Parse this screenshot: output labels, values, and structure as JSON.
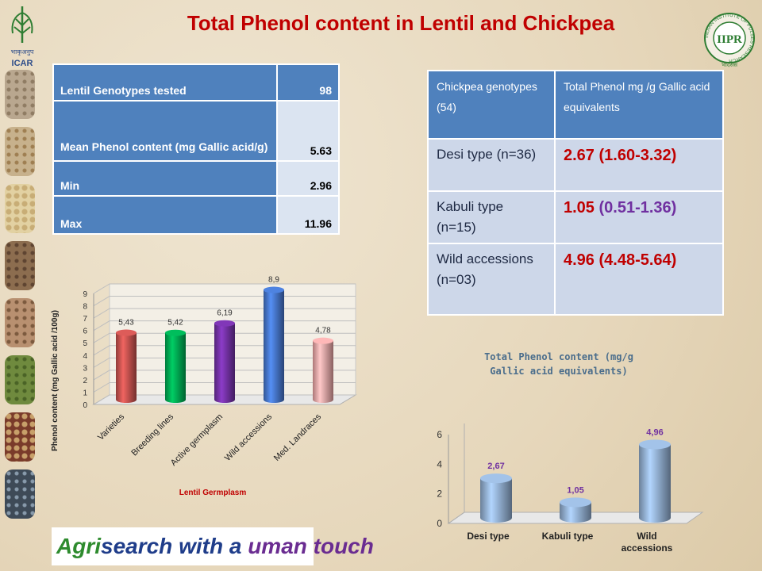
{
  "title": "Total Phenol content in Lentil and Chickpea",
  "logos": {
    "left_text": "ICAR",
    "left_hindi": "भाकृअनुप",
    "right_text": "IIPR",
    "right_ring": "INDIAN INSTITUTE OF PULSES RESEARCH",
    "right_hindi": "भादसंस"
  },
  "lentil_table": {
    "rows": [
      {
        "label": "Lentil Genotypes  tested",
        "value": "98"
      },
      {
        "label": "Mean Phenol content (mg Gallic acid/g)",
        "value": "5.63"
      },
      {
        "label": "Min",
        "value": "2.96"
      },
      {
        "label": "Max",
        "value": "11.96"
      }
    ]
  },
  "chickpea_table": {
    "header_left": "Chickpea genotypes (54)",
    "header_right": "Total Phenol mg /g Gallic acid equivalents",
    "rows": [
      {
        "label": "Desi type (n=36)",
        "mean": "2.67",
        "range": "(1.60-3.32)"
      },
      {
        "label": "Kabuli type (n=15)",
        "mean": "1.05",
        "range": "(0.51-1.36)"
      },
      {
        "label": "Wild accessions (n=03)",
        "mean": "4.96",
        "range": "(4.48-5.64)"
      }
    ]
  },
  "footer": {
    "part1": "Agri",
    "part2": "search with a ",
    "part3": "uman touch"
  },
  "chart_data": [
    {
      "type": "bar",
      "title": "",
      "xlabel": "Lentil Germplasm",
      "ylabel": "Phenol content (mg Gallic acid /100g)",
      "ylim": [
        0,
        9
      ],
      "yticks": [
        "0",
        "1",
        "2",
        "3",
        "4",
        "5",
        "6",
        "7",
        "8",
        "9"
      ],
      "categories": [
        "Varieties",
        "Breeding lines",
        "Active germplasm",
        "Wild accessions",
        "Med. Landraces"
      ],
      "values": [
        5.43,
        5.42,
        6.19,
        8.9,
        4.78
      ],
      "data_labels": [
        "5,43",
        "5,42",
        "6,19",
        "8,9",
        "4,78"
      ],
      "colors": [
        "#c0504d",
        "#00a550",
        "#7030a0",
        "#4472c4",
        "#e6a0a0"
      ],
      "grid": true,
      "style": "3d-cylinder"
    },
    {
      "type": "bar",
      "title": "Total Phenol content (mg/g Gallic acid equivalents)",
      "xlabel": "",
      "ylabel": "",
      "ylim": [
        0,
        6
      ],
      "yticks": [
        "0",
        "2",
        "4",
        "6"
      ],
      "categories": [
        "Desi type",
        "Kabuli type",
        "Wild accessions"
      ],
      "values": [
        2.67,
        1.05,
        4.96
      ],
      "data_labels": [
        "2,67",
        "1,05",
        "4,96"
      ],
      "colors": [
        "#8eaacb",
        "#8eaacb",
        "#8eaacb"
      ],
      "grid": false,
      "style": "3d-cylinder"
    }
  ]
}
